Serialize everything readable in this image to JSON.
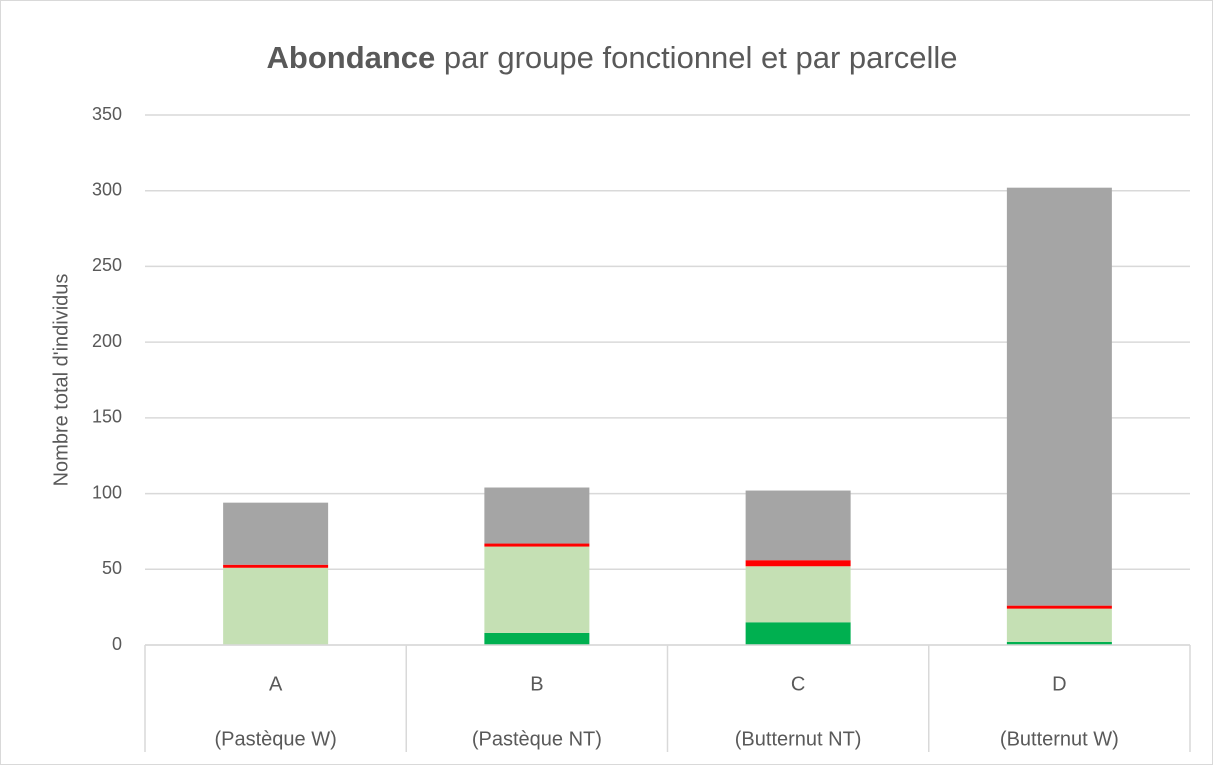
{
  "chart_data": {
    "type": "stacked_bar",
    "title_parts": [
      "Abondance",
      "par groupe fonctionnel et par parcelle"
    ],
    "y_label": "Nombre total d'individus",
    "categories": [
      "A",
      "B",
      "C",
      "D"
    ],
    "subcategories": [
      "(Pastèque W)",
      "(Pastèque NT)",
      "(Butternut NT)",
      "(Butternut W)"
    ],
    "series": [
      {
        "color": "#00b050",
        "values": [
          0,
          8,
          15,
          2
        ]
      },
      {
        "color": "#c5e0b4",
        "values": [
          51,
          57,
          37,
          22
        ]
      },
      {
        "color": "#ff0000",
        "values": [
          2,
          2,
          4,
          2
        ]
      },
      {
        "color": "#a5a5a5",
        "values": [
          41,
          37,
          46,
          276
        ]
      }
    ],
    "ylim": [
      0,
      350
    ],
    "yticks": [
      0,
      50,
      100,
      150,
      200,
      250,
      300,
      350
    ],
    "grid": true
  }
}
